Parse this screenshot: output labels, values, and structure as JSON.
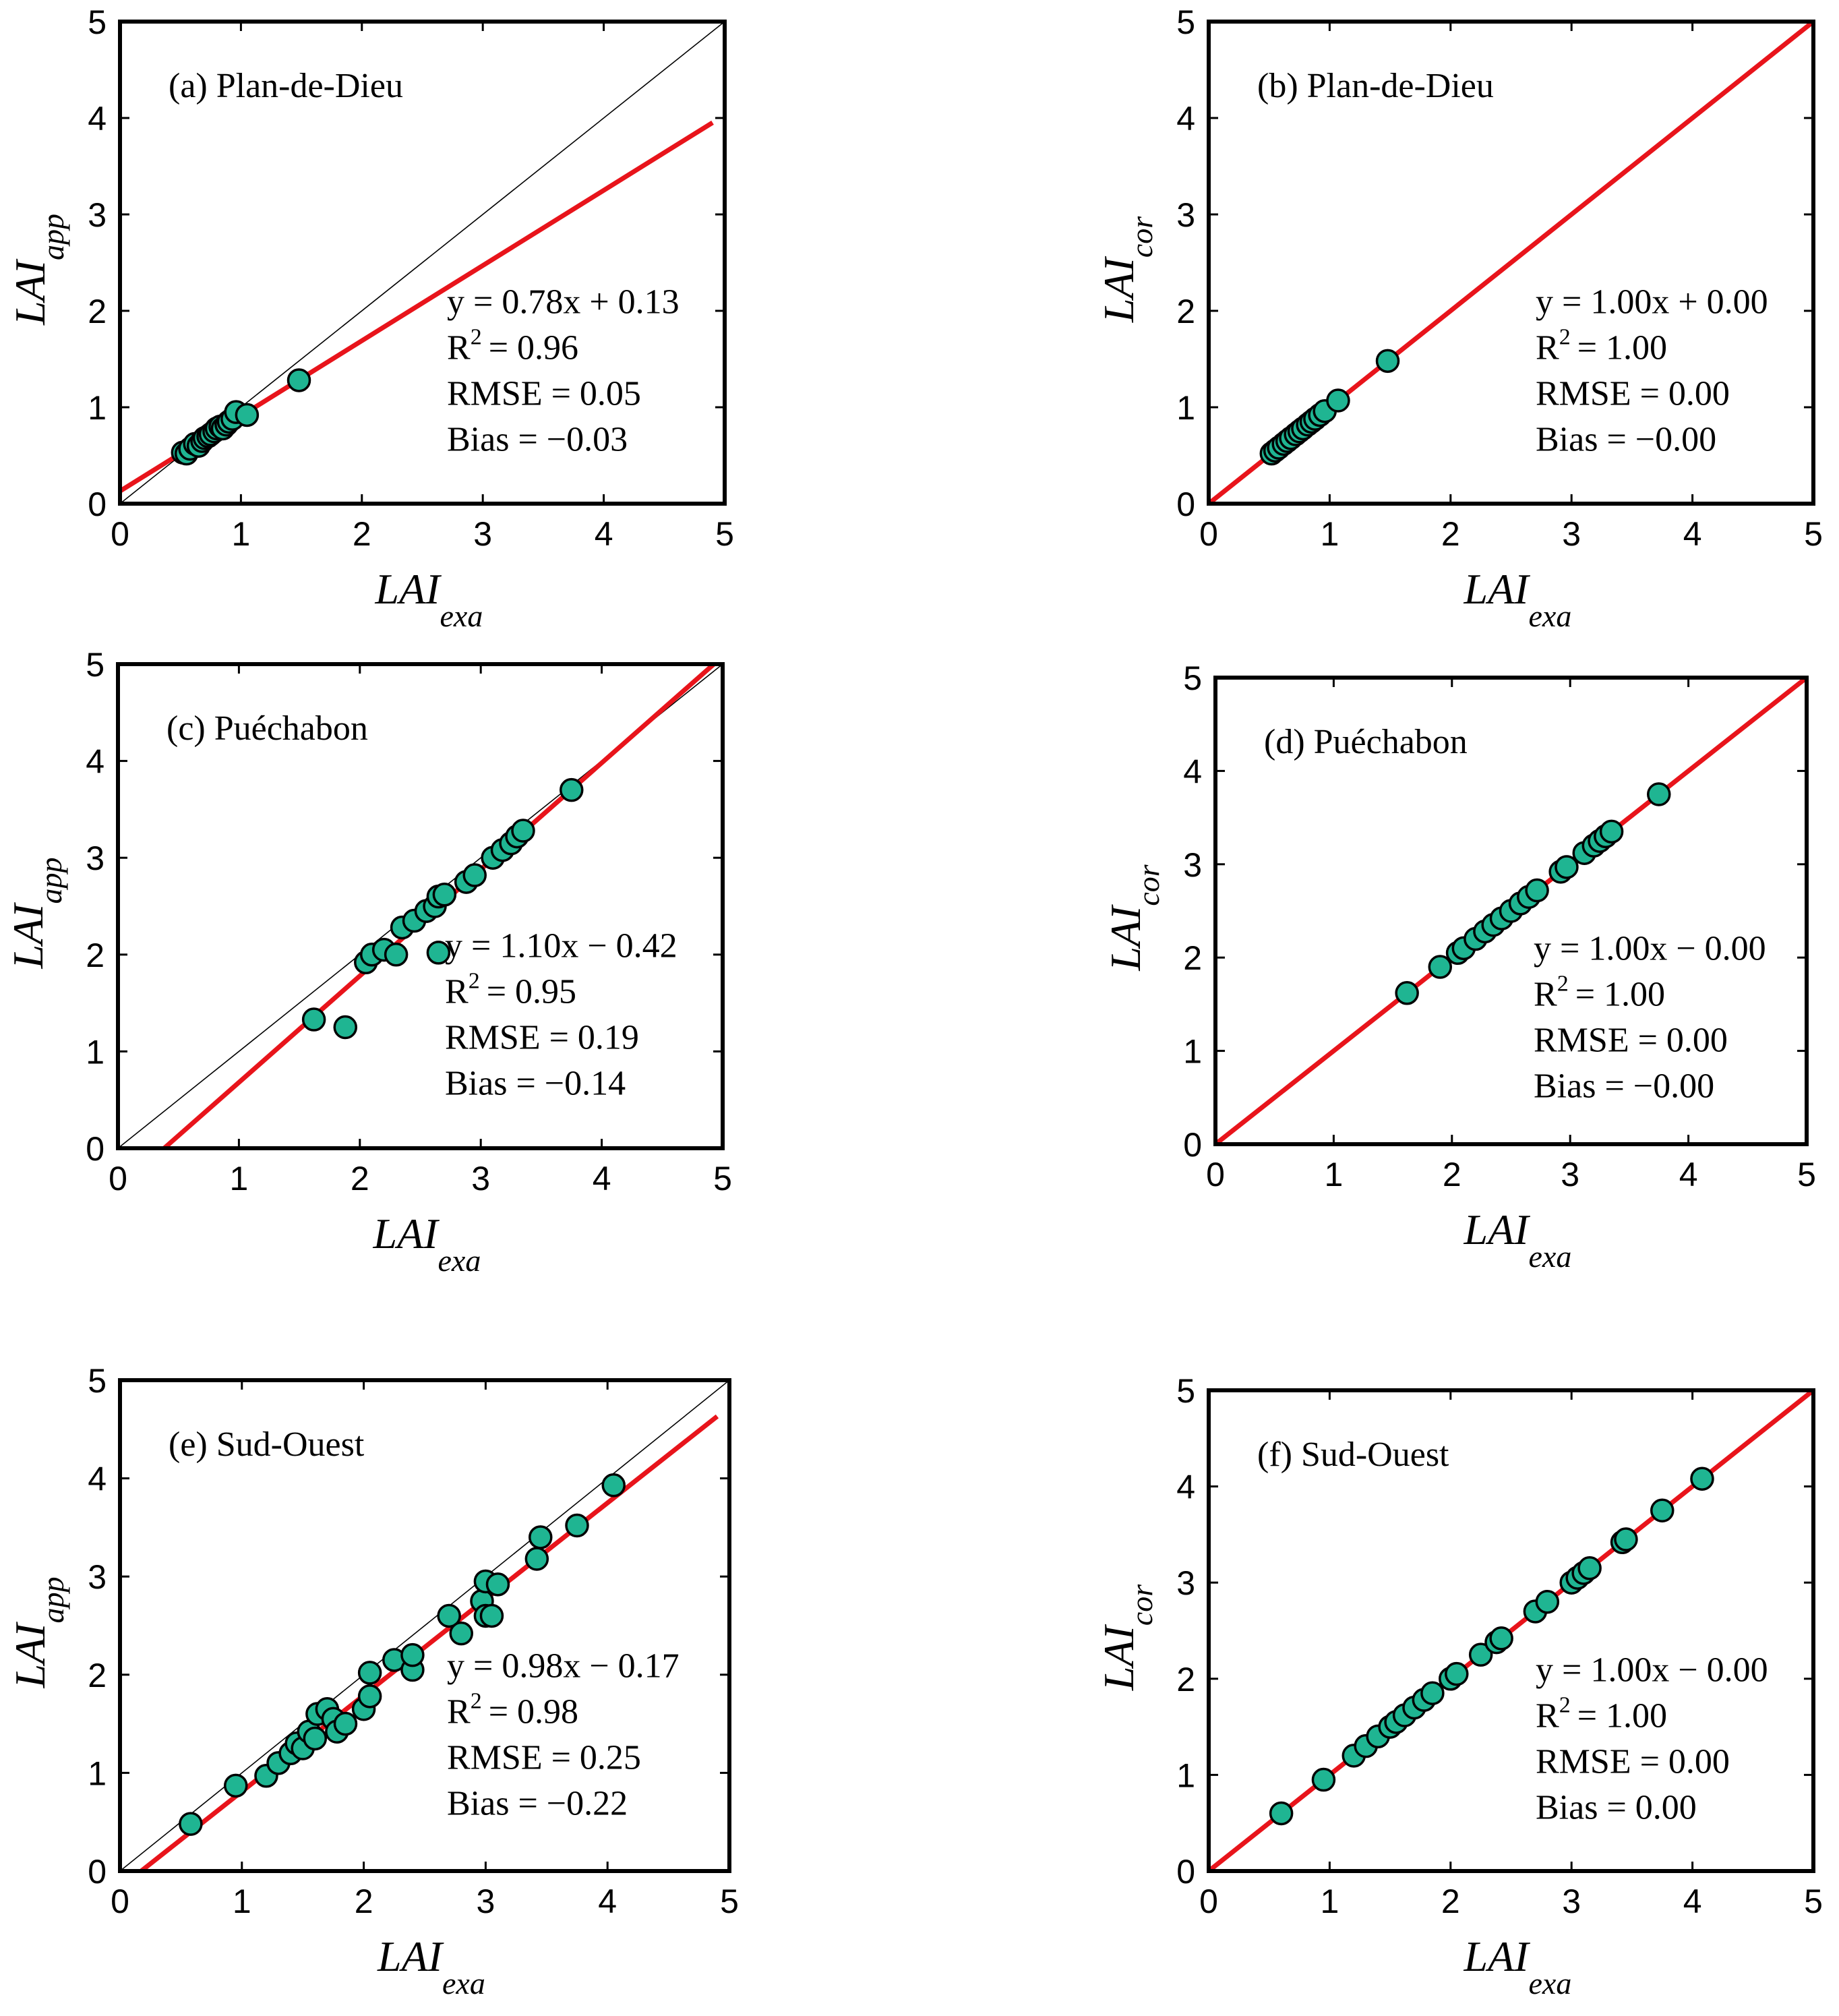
{
  "colors": {
    "point_fill": "#1fb592",
    "point_stroke": "#000000",
    "fit_line": "#e8141b",
    "identity_line": "#000000"
  },
  "chart_data": [
    {
      "panel": "a",
      "type": "scatter",
      "title": "(a) Plan-de-Dieu",
      "xlabel_main": "LAI",
      "xlabel_sub": "exa",
      "ylabel_main": "LAI",
      "ylabel_sub": "app",
      "xlim": [
        0,
        5
      ],
      "ylim": [
        0,
        5
      ],
      "ticks": [
        "0",
        "1",
        "2",
        "3",
        "4",
        "5"
      ],
      "fit": {
        "slope": 0.78,
        "intercept": 0.13,
        "x_range": [
          0,
          4.9
        ]
      },
      "stats": {
        "equation": "y = 0.78x + 0.13",
        "r2_prefix": "R",
        "r2_exp": "2",
        "r2_value": "= 0.96",
        "rmse": "RMSE = 0.05",
        "bias": "Bias = −0.03"
      },
      "points": [
        [
          0.52,
          0.53
        ],
        [
          0.55,
          0.52
        ],
        [
          0.58,
          0.57
        ],
        [
          0.62,
          0.62
        ],
        [
          0.65,
          0.6
        ],
        [
          0.68,
          0.65
        ],
        [
          0.7,
          0.68
        ],
        [
          0.73,
          0.7
        ],
        [
          0.75,
          0.72
        ],
        [
          0.78,
          0.75
        ],
        [
          0.8,
          0.78
        ],
        [
          0.83,
          0.8
        ],
        [
          0.85,
          0.78
        ],
        [
          0.88,
          0.82
        ],
        [
          0.9,
          0.85
        ],
        [
          0.93,
          0.88
        ],
        [
          0.96,
          0.95
        ],
        [
          1.05,
          0.92
        ],
        [
          1.48,
          1.28
        ]
      ]
    },
    {
      "panel": "b",
      "type": "scatter",
      "title": "(b) Plan-de-Dieu",
      "xlabel_main": "LAI",
      "xlabel_sub": "exa",
      "ylabel_main": "LAI",
      "ylabel_sub": "cor",
      "xlim": [
        0,
        5
      ],
      "ylim": [
        0,
        5
      ],
      "ticks": [
        "0",
        "1",
        "2",
        "3",
        "4",
        "5"
      ],
      "fit": {
        "slope": 1.0,
        "intercept": 0.0,
        "x_range": [
          0,
          5
        ]
      },
      "stats": {
        "equation": "y = 1.00x + 0.00",
        "r2_prefix": "R",
        "r2_exp": "2",
        "r2_value": "= 1.00",
        "rmse": "RMSE = 0.00",
        "bias": "Bias = −0.00"
      },
      "points": [
        [
          0.52,
          0.52
        ],
        [
          0.55,
          0.55
        ],
        [
          0.58,
          0.58
        ],
        [
          0.62,
          0.62
        ],
        [
          0.65,
          0.65
        ],
        [
          0.68,
          0.68
        ],
        [
          0.72,
          0.72
        ],
        [
          0.75,
          0.75
        ],
        [
          0.78,
          0.78
        ],
        [
          0.82,
          0.82
        ],
        [
          0.85,
          0.85
        ],
        [
          0.88,
          0.88
        ],
        [
          0.92,
          0.92
        ],
        [
          0.96,
          0.96
        ],
        [
          1.07,
          1.07
        ],
        [
          1.48,
          1.48
        ]
      ]
    },
    {
      "panel": "c",
      "type": "scatter",
      "title": "(c) Puéchabon",
      "xlabel_main": "LAI",
      "xlabel_sub": "exa",
      "ylabel_main": "LAI",
      "ylabel_sub": "app",
      "xlim": [
        0,
        5
      ],
      "ylim": [
        0,
        5
      ],
      "ticks": [
        "0",
        "1",
        "2",
        "3",
        "4",
        "5"
      ],
      "fit": {
        "slope": 1.1,
        "intercept": -0.42,
        "x_range": [
          0.382,
          5
        ]
      },
      "stats": {
        "equation": "y = 1.10x − 0.42",
        "r2_prefix": "R",
        "r2_exp": "2",
        "r2_value": "= 0.95",
        "rmse": "RMSE = 0.19",
        "bias": "Bias = −0.14"
      },
      "points": [
        [
          1.62,
          1.33
        ],
        [
          1.88,
          1.25
        ],
        [
          2.05,
          1.92
        ],
        [
          2.1,
          2.0
        ],
        [
          2.2,
          2.05
        ],
        [
          2.3,
          2.0
        ],
        [
          2.35,
          2.28
        ],
        [
          2.45,
          2.35
        ],
        [
          2.55,
          2.45
        ],
        [
          2.62,
          2.5
        ],
        [
          2.65,
          2.6
        ],
        [
          2.7,
          2.62
        ],
        [
          2.65,
          2.02
        ],
        [
          2.88,
          2.75
        ],
        [
          2.95,
          2.82
        ],
        [
          3.1,
          3.0
        ],
        [
          3.18,
          3.08
        ],
        [
          3.25,
          3.15
        ],
        [
          3.3,
          3.22
        ],
        [
          3.35,
          3.28
        ],
        [
          3.75,
          3.7
        ]
      ]
    },
    {
      "panel": "d",
      "type": "scatter",
      "title": "(d) Puéchabon",
      "xlabel_main": "LAI",
      "xlabel_sub": "exa",
      "ylabel_main": "LAI",
      "ylabel_sub": "cor",
      "xlim": [
        0,
        5
      ],
      "ylim": [
        0,
        5
      ],
      "ticks": [
        "0",
        "1",
        "2",
        "3",
        "4",
        "5"
      ],
      "fit": {
        "slope": 1.0,
        "intercept": 0.0,
        "x_range": [
          0,
          5
        ]
      },
      "stats": {
        "equation": "y = 1.00x − 0.00",
        "r2_prefix": "R",
        "r2_exp": "2",
        "r2_value": "= 1.00",
        "rmse": "RMSE = 0.00",
        "bias": "Bias = −0.00"
      },
      "points": [
        [
          1.62,
          1.62
        ],
        [
          1.9,
          1.9
        ],
        [
          2.05,
          2.05
        ],
        [
          2.1,
          2.1
        ],
        [
          2.2,
          2.2
        ],
        [
          2.28,
          2.28
        ],
        [
          2.35,
          2.35
        ],
        [
          2.42,
          2.42
        ],
        [
          2.5,
          2.5
        ],
        [
          2.58,
          2.58
        ],
        [
          2.65,
          2.65
        ],
        [
          2.72,
          2.72
        ],
        [
          2.92,
          2.92
        ],
        [
          2.97,
          2.97
        ],
        [
          3.12,
          3.12
        ],
        [
          3.2,
          3.2
        ],
        [
          3.25,
          3.25
        ],
        [
          3.3,
          3.3
        ],
        [
          3.35,
          3.35
        ],
        [
          3.75,
          3.75
        ]
      ]
    },
    {
      "panel": "e",
      "type": "scatter",
      "title": "(e) Sud-Ouest",
      "xlabel_main": "LAI",
      "xlabel_sub": "exa",
      "ylabel_main": "LAI",
      "ylabel_sub": "app",
      "xlim": [
        0,
        5
      ],
      "ylim": [
        0,
        5
      ],
      "ticks": [
        "0",
        "1",
        "2",
        "3",
        "4",
        "5"
      ],
      "fit": {
        "slope": 0.98,
        "intercept": -0.17,
        "x_range": [
          0.173,
          4.9
        ]
      },
      "stats": {
        "equation": "y = 0.98x − 0.17",
        "r2_prefix": "R",
        "r2_exp": "2",
        "r2_value": "= 0.98",
        "rmse": "RMSE = 0.25",
        "bias": "Bias = −0.22"
      },
      "points": [
        [
          0.58,
          0.48
        ],
        [
          0.95,
          0.87
        ],
        [
          1.2,
          0.97
        ],
        [
          1.3,
          1.1
        ],
        [
          1.4,
          1.2
        ],
        [
          1.45,
          1.3
        ],
        [
          1.5,
          1.25
        ],
        [
          1.55,
          1.42
        ],
        [
          1.6,
          1.35
        ],
        [
          1.62,
          1.6
        ],
        [
          1.7,
          1.65
        ],
        [
          1.75,
          1.55
        ],
        [
          1.78,
          1.42
        ],
        [
          1.85,
          1.5
        ],
        [
          2.0,
          1.65
        ],
        [
          2.05,
          1.78
        ],
        [
          2.05,
          2.02
        ],
        [
          2.25,
          2.15
        ],
        [
          2.4,
          2.05
        ],
        [
          2.4,
          2.2
        ],
        [
          2.7,
          2.6
        ],
        [
          2.8,
          2.42
        ],
        [
          2.97,
          2.75
        ],
        [
          3.0,
          2.95
        ],
        [
          3.0,
          2.6
        ],
        [
          3.05,
          2.6
        ],
        [
          3.1,
          2.92
        ],
        [
          3.42,
          3.18
        ],
        [
          3.45,
          3.4
        ],
        [
          3.75,
          3.52
        ],
        [
          4.05,
          3.93
        ]
      ]
    },
    {
      "panel": "f",
      "type": "scatter",
      "title": "(f) Sud-Ouest",
      "xlabel_main": "LAI",
      "xlabel_sub": "exa",
      "ylabel_main": "LAI",
      "ylabel_sub": "cor",
      "xlim": [
        0,
        5
      ],
      "ylim": [
        0,
        5
      ],
      "ticks": [
        "0",
        "1",
        "2",
        "3",
        "4",
        "5"
      ],
      "fit": {
        "slope": 1.0,
        "intercept": 0.0,
        "x_range": [
          0,
          5
        ]
      },
      "stats": {
        "equation": "y = 1.00x − 0.00",
        "r2_prefix": "R",
        "r2_exp": "2",
        "r2_value": "= 1.00",
        "rmse": "RMSE = 0.00",
        "bias": "Bias = 0.00"
      },
      "points": [
        [
          0.6,
          0.6
        ],
        [
          0.95,
          0.95
        ],
        [
          1.2,
          1.2
        ],
        [
          1.3,
          1.3
        ],
        [
          1.4,
          1.4
        ],
        [
          1.5,
          1.5
        ],
        [
          1.55,
          1.55
        ],
        [
          1.62,
          1.62
        ],
        [
          1.7,
          1.7
        ],
        [
          1.78,
          1.78
        ],
        [
          1.85,
          1.85
        ],
        [
          2.0,
          2.0
        ],
        [
          2.05,
          2.05
        ],
        [
          2.25,
          2.25
        ],
        [
          2.38,
          2.38
        ],
        [
          2.42,
          2.42
        ],
        [
          2.7,
          2.7
        ],
        [
          2.8,
          2.8
        ],
        [
          3.0,
          3.0
        ],
        [
          3.05,
          3.05
        ],
        [
          3.1,
          3.1
        ],
        [
          3.15,
          3.15
        ],
        [
          3.42,
          3.42
        ],
        [
          3.45,
          3.45
        ],
        [
          3.75,
          3.75
        ],
        [
          4.08,
          4.08
        ]
      ]
    }
  ]
}
